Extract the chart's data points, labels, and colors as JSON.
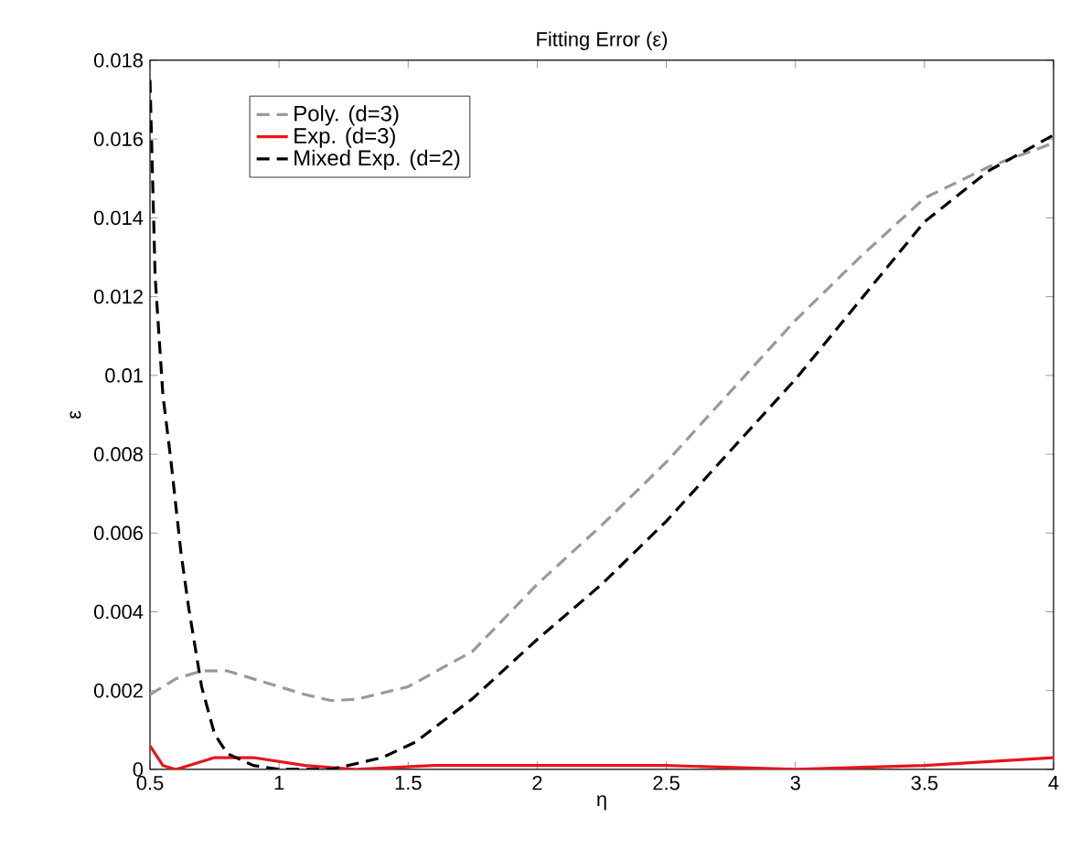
{
  "chart_data": {
    "type": "line",
    "title": "Fitting Error (ε)",
    "xlabel": "η",
    "ylabel": "ε",
    "xlim": [
      0.5,
      4
    ],
    "ylim": [
      0,
      0.018
    ],
    "xticks": [
      0.5,
      1,
      1.5,
      2,
      2.5,
      3,
      3.5,
      4
    ],
    "yticks": [
      0,
      0.002,
      0.004,
      0.006,
      0.008,
      0.01,
      0.012,
      0.014,
      0.016,
      0.018
    ],
    "legend": "top left",
    "grid": false,
    "series": [
      {
        "name": "Poly. (d=3)",
        "color": "#999999",
        "line_style": "dashed",
        "x": [
          0.5,
          0.6,
          0.7,
          0.8,
          0.9,
          1.0,
          1.1,
          1.2,
          1.3,
          1.5,
          1.75,
          2.0,
          2.25,
          2.5,
          2.75,
          3.0,
          3.25,
          3.5,
          3.75,
          4.0
        ],
        "values": [
          0.0019,
          0.0023,
          0.0025,
          0.0025,
          0.0023,
          0.0021,
          0.0019,
          0.00175,
          0.00178,
          0.0021,
          0.003,
          0.0047,
          0.0062,
          0.0078,
          0.0096,
          0.0114,
          0.013,
          0.0145,
          0.0153,
          0.0159
        ]
      },
      {
        "name": "Exp. (d=3)",
        "color": "#e8141c",
        "line_style": "solid",
        "x": [
          0.5,
          0.55,
          0.6,
          0.65,
          0.75,
          0.9,
          1.1,
          1.3,
          1.6,
          2.0,
          2.5,
          3.0,
          3.5,
          3.75,
          4.0
        ],
        "values": [
          0.0006,
          0.0001,
          0.0,
          0.0001,
          0.0003,
          0.0003,
          0.0001,
          0.0,
          0.0001,
          0.0001,
          0.0001,
          0.0,
          0.0001,
          0.0002,
          0.0003
        ]
      },
      {
        "name": "Mixed Exp. (d=2)",
        "color": "#000000",
        "line_style": "dashed",
        "x": [
          0.5,
          0.52,
          0.55,
          0.58,
          0.62,
          0.65,
          0.7,
          0.75,
          0.8,
          0.9,
          1.0,
          1.2,
          1.4,
          1.53,
          1.75,
          2.0,
          2.25,
          2.5,
          2.75,
          3.0,
          3.25,
          3.5,
          3.75,
          4.0
        ],
        "values": [
          0.0175,
          0.0125,
          0.0095,
          0.0079,
          0.0055,
          0.0041,
          0.0021,
          0.0009,
          0.0004,
          0.0001,
          0.0,
          0.0,
          0.0003,
          0.0007,
          0.0018,
          0.0033,
          0.0047,
          0.0063,
          0.0081,
          0.0099,
          0.0119,
          0.0139,
          0.0152,
          0.0161
        ]
      }
    ]
  }
}
